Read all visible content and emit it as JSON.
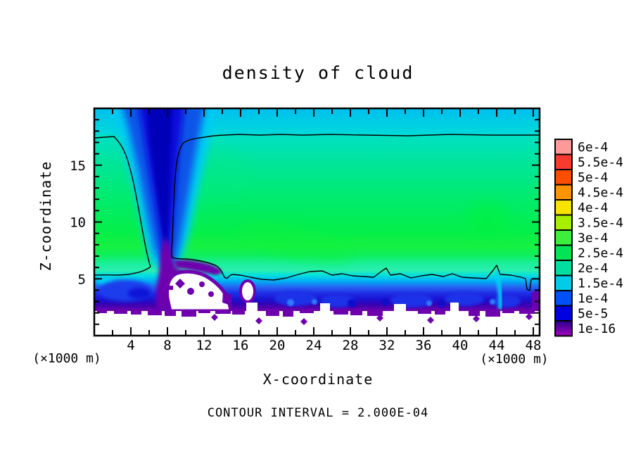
{
  "title": "density of cloud",
  "axes": {
    "x": {
      "label": "X-coordinate",
      "unit_left": "(×1000 m)",
      "unit_right": "(×1000 m)",
      "min": 0,
      "max": 48.7,
      "labeled_ticks": [
        4,
        8,
        12,
        16,
        20,
        24,
        28,
        32,
        36,
        40,
        44,
        48
      ],
      "minor_tick_step": 2,
      "major_tick_step": 4
    },
    "z": {
      "label": "Z-coordinate",
      "min": 0,
      "max": 20,
      "labeled_ticks": [
        5,
        10,
        15
      ],
      "minor_tick_step": 1
    }
  },
  "footer": {
    "contour_interval_text": "CONTOUR INTERVAL = 2.000E-04"
  },
  "colorbar": {
    "labels_top_to_bottom": [
      "6e-4",
      "5.5e-4",
      "5e-4",
      "4.5e-4",
      "4e-4",
      "3.5e-4",
      "3e-4",
      "2.5e-4",
      "2e-4",
      "1.5e-4",
      "1e-4",
      "5e-5",
      "1e-16"
    ],
    "colors_top_to_bottom": [
      "#FC9A9A",
      "#F93A30",
      "#FA4E00",
      "#FB9400",
      "#F7E200",
      "#A8EE00",
      "#3DEF3D",
      "#00E455",
      "#00DFA0",
      "#00CCEA",
      "#0050F8",
      "#0000DE",
      "#5A00A0"
    ],
    "bottom_cell_gradient": [
      "#28008E",
      "#A400BA"
    ]
  },
  "chart_data": {
    "type": "heatmap",
    "title": "density of cloud",
    "xlabel": "X-coordinate (×1000 m)",
    "ylabel": "Z-coordinate (×1000 m)",
    "xlim": [
      0,
      48.7
    ],
    "ylim": [
      0,
      20
    ],
    "grid": false,
    "legend_position": "right colorbar",
    "contour_interval": "2.000E-04",
    "black_contour_level": "2e-4",
    "levels": [
      "1e-16",
      "5e-5",
      "1e-4",
      "1.5e-4",
      "2e-4",
      "2.5e-4",
      "3e-4",
      "3.5e-4",
      "4e-4",
      "4.5e-4",
      "5e-4",
      "5.5e-4",
      "6e-4"
    ],
    "level_colors": [
      "#5A00A0",
      "#0000DE",
      "#0050F8",
      "#00CCEA",
      "#00DFA0",
      "#00E455",
      "#3DEF3D",
      "#A8EE00",
      "#F7E200",
      "#FB9400",
      "#FA4E00",
      "#F93A30",
      "#FC9A9A"
    ],
    "features": [
      "broad cloud layer (2e-4 to 3e-4, green) spanning z = 5 to 18 km across the full x range",
      "cyan band (1e-4 to 2e-4) above the 2e-4 contour near z = 17.8 km up to the top boundary at z = 20 km",
      "low-density downdraft plume (blue, < 1e-4) descending from the top boundary around x = 4-9 km",
      "near-zero purple core (< 5e-5) inside the plume from z = 9 km down to z = 2.5 km around x = 7-10 km",
      "shallow layer below the 2e-4 contour at z = 5 km: cyan to blue to purple gradient reaching z = 2.5 km",
      "cloud-free white region below z = 2.2 km and a white hole around x = 8-15 km, z = 2.5-5.5 km",
      "narrow vertical notch in the low-level 2e-4 contour near x = 44.5 km"
    ]
  }
}
